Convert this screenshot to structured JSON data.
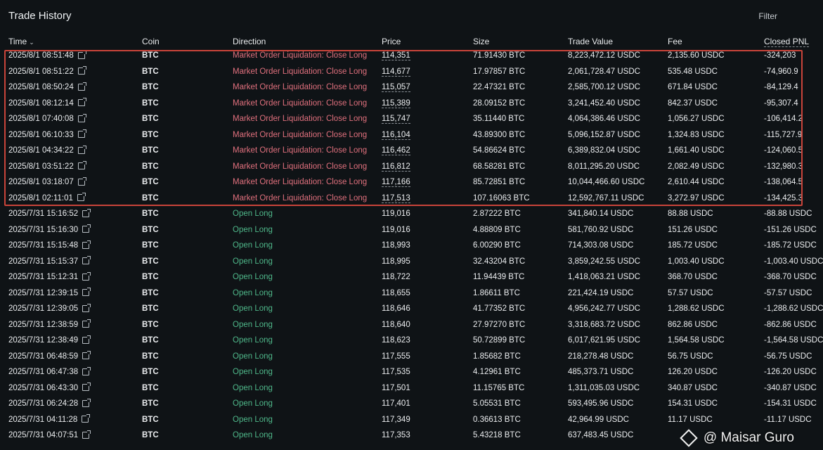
{
  "header": {
    "title": "Trade History",
    "filter_label": "Filter"
  },
  "columns": [
    "Time",
    "Coin",
    "Direction",
    "Price",
    "Size",
    "Trade Value",
    "Fee",
    "Closed PNL"
  ],
  "rows": [
    {
      "time": "2025/8/1 08:51:48",
      "coin": "BTC",
      "direction": "Market Order Liquidation: Close Long",
      "price": "114,351",
      "size": "71.91430 BTC",
      "value": "8,223,472.12 USDC",
      "fee": "2,135.60 USDC",
      "pnl": "-324,203"
    },
    {
      "time": "2025/8/1 08:51:22",
      "coin": "BTC",
      "direction": "Market Order Liquidation: Close Long",
      "price": "114,677",
      "size": "17.97857 BTC",
      "value": "2,061,728.47 USDC",
      "fee": "535.48 USDC",
      "pnl": "-74,960.9"
    },
    {
      "time": "2025/8/1 08:50:24",
      "coin": "BTC",
      "direction": "Market Order Liquidation: Close Long",
      "price": "115,057",
      "size": "22.47321 BTC",
      "value": "2,585,700.12 USDC",
      "fee": "671.84 USDC",
      "pnl": "-84,129.4"
    },
    {
      "time": "2025/8/1 08:12:14",
      "coin": "BTC",
      "direction": "Market Order Liquidation: Close Long",
      "price": "115,389",
      "size": "28.09152 BTC",
      "value": "3,241,452.40 USDC",
      "fee": "842.37 USDC",
      "pnl": "-95,307.4"
    },
    {
      "time": "2025/8/1 07:40:08",
      "coin": "BTC",
      "direction": "Market Order Liquidation: Close Long",
      "price": "115,747",
      "size": "35.11440 BTC",
      "value": "4,064,386.46 USDC",
      "fee": "1,056.27 USDC",
      "pnl": "-106,414.2"
    },
    {
      "time": "2025/8/1 06:10:33",
      "coin": "BTC",
      "direction": "Market Order Liquidation: Close Long",
      "price": "116,104",
      "size": "43.89300 BTC",
      "value": "5,096,152.87 USDC",
      "fee": "1,324.83 USDC",
      "pnl": "-115,727.9"
    },
    {
      "time": "2025/8/1 04:34:22",
      "coin": "BTC",
      "direction": "Market Order Liquidation: Close Long",
      "price": "116,462",
      "size": "54.86624 BTC",
      "value": "6,389,832.04 USDC",
      "fee": "1,661.40 USDC",
      "pnl": "-124,060.5"
    },
    {
      "time": "2025/8/1 03:51:22",
      "coin": "BTC",
      "direction": "Market Order Liquidation: Close Long",
      "price": "116,812",
      "size": "68.58281 BTC",
      "value": "8,011,295.20 USDC",
      "fee": "2,082.49 USDC",
      "pnl": "-132,980.3"
    },
    {
      "time": "2025/8/1 03:18:07",
      "coin": "BTC",
      "direction": "Market Order Liquidation: Close Long",
      "price": "117,166",
      "size": "85.72851 BTC",
      "value": "10,044,466.60 USDC",
      "fee": "2,610.44 USDC",
      "pnl": "-138,064.5"
    },
    {
      "time": "2025/8/1 02:11:01",
      "coin": "BTC",
      "direction": "Market Order Liquidation: Close Long",
      "price": "117,513",
      "size": "107.16063 BTC",
      "value": "12,592,767.11 USDC",
      "fee": "3,272.97 USDC",
      "pnl": "-134,425.3"
    },
    {
      "time": "2025/7/31 15:16:52",
      "coin": "BTC",
      "direction": "Open Long",
      "price": "119,016",
      "size": "2.87222 BTC",
      "value": "341,840.14 USDC",
      "fee": "88.88 USDC",
      "pnl": "-88.88 USDC"
    },
    {
      "time": "2025/7/31 15:16:30",
      "coin": "BTC",
      "direction": "Open Long",
      "price": "119,016",
      "size": "4.88809 BTC",
      "value": "581,760.92 USDC",
      "fee": "151.26 USDC",
      "pnl": "-151.26 USDC"
    },
    {
      "time": "2025/7/31 15:15:48",
      "coin": "BTC",
      "direction": "Open Long",
      "price": "118,993",
      "size": "6.00290 BTC",
      "value": "714,303.08 USDC",
      "fee": "185.72 USDC",
      "pnl": "-185.72 USDC"
    },
    {
      "time": "2025/7/31 15:15:37",
      "coin": "BTC",
      "direction": "Open Long",
      "price": "118,995",
      "size": "32.43204 BTC",
      "value": "3,859,242.55 USDC",
      "fee": "1,003.40 USDC",
      "pnl": "-1,003.40 USDC"
    },
    {
      "time": "2025/7/31 15:12:31",
      "coin": "BTC",
      "direction": "Open Long",
      "price": "118,722",
      "size": "11.94439 BTC",
      "value": "1,418,063.21 USDC",
      "fee": "368.70 USDC",
      "pnl": "-368.70 USDC"
    },
    {
      "time": "2025/7/31 12:39:15",
      "coin": "BTC",
      "direction": "Open Long",
      "price": "118,655",
      "size": "1.86611 BTC",
      "value": "221,424.19 USDC",
      "fee": "57.57 USDC",
      "pnl": "-57.57 USDC"
    },
    {
      "time": "2025/7/31 12:39:05",
      "coin": "BTC",
      "direction": "Open Long",
      "price": "118,646",
      "size": "41.77352 BTC",
      "value": "4,956,242.77 USDC",
      "fee": "1,288.62 USDC",
      "pnl": "-1,288.62 USDC"
    },
    {
      "time": "2025/7/31 12:38:59",
      "coin": "BTC",
      "direction": "Open Long",
      "price": "118,640",
      "size": "27.97270 BTC",
      "value": "3,318,683.72 USDC",
      "fee": "862.86 USDC",
      "pnl": "-862.86 USDC"
    },
    {
      "time": "2025/7/31 12:38:49",
      "coin": "BTC",
      "direction": "Open Long",
      "price": "118,623",
      "size": "50.72899 BTC",
      "value": "6,017,621.95 USDC",
      "fee": "1,564.58 USDC",
      "pnl": "-1,564.58 USDC"
    },
    {
      "time": "2025/7/31 06:48:59",
      "coin": "BTC",
      "direction": "Open Long",
      "price": "117,555",
      "size": "1.85682 BTC",
      "value": "218,278.48 USDC",
      "fee": "56.75 USDC",
      "pnl": "-56.75 USDC"
    },
    {
      "time": "2025/7/31 06:47:38",
      "coin": "BTC",
      "direction": "Open Long",
      "price": "117,535",
      "size": "4.12961 BTC",
      "value": "485,373.71 USDC",
      "fee": "126.20 USDC",
      "pnl": "-126.20 USDC"
    },
    {
      "time": "2025/7/31 06:43:30",
      "coin": "BTC",
      "direction": "Open Long",
      "price": "117,501",
      "size": "11.15765 BTC",
      "value": "1,311,035.03 USDC",
      "fee": "340.87 USDC",
      "pnl": "-340.87 USDC"
    },
    {
      "time": "2025/7/31 06:24:28",
      "coin": "BTC",
      "direction": "Open Long",
      "price": "117,401",
      "size": "5.05531 BTC",
      "value": "593,495.96 USDC",
      "fee": "154.31 USDC",
      "pnl": "-154.31 USDC"
    },
    {
      "time": "2025/7/31 04:11:28",
      "coin": "BTC",
      "direction": "Open Long",
      "price": "117,349",
      "size": "0.36613 BTC",
      "value": "42,964.99 USDC",
      "fee": "11.17 USDC",
      "pnl": "-11.17 USDC"
    },
    {
      "time": "2025/7/31 04:07:51",
      "coin": "BTC",
      "direction": "Open Long",
      "price": "117,353",
      "size": "5.43218 BTC",
      "value": "637,483.45 USDC",
      "fee": "",
      "pnl": ""
    }
  ],
  "watermark": "@ Maisar Guro",
  "colors": {
    "background": "#0f1316",
    "liquidation": "#e0707d",
    "open_long": "#4fb88a",
    "highlight_border": "#c9443a"
  }
}
